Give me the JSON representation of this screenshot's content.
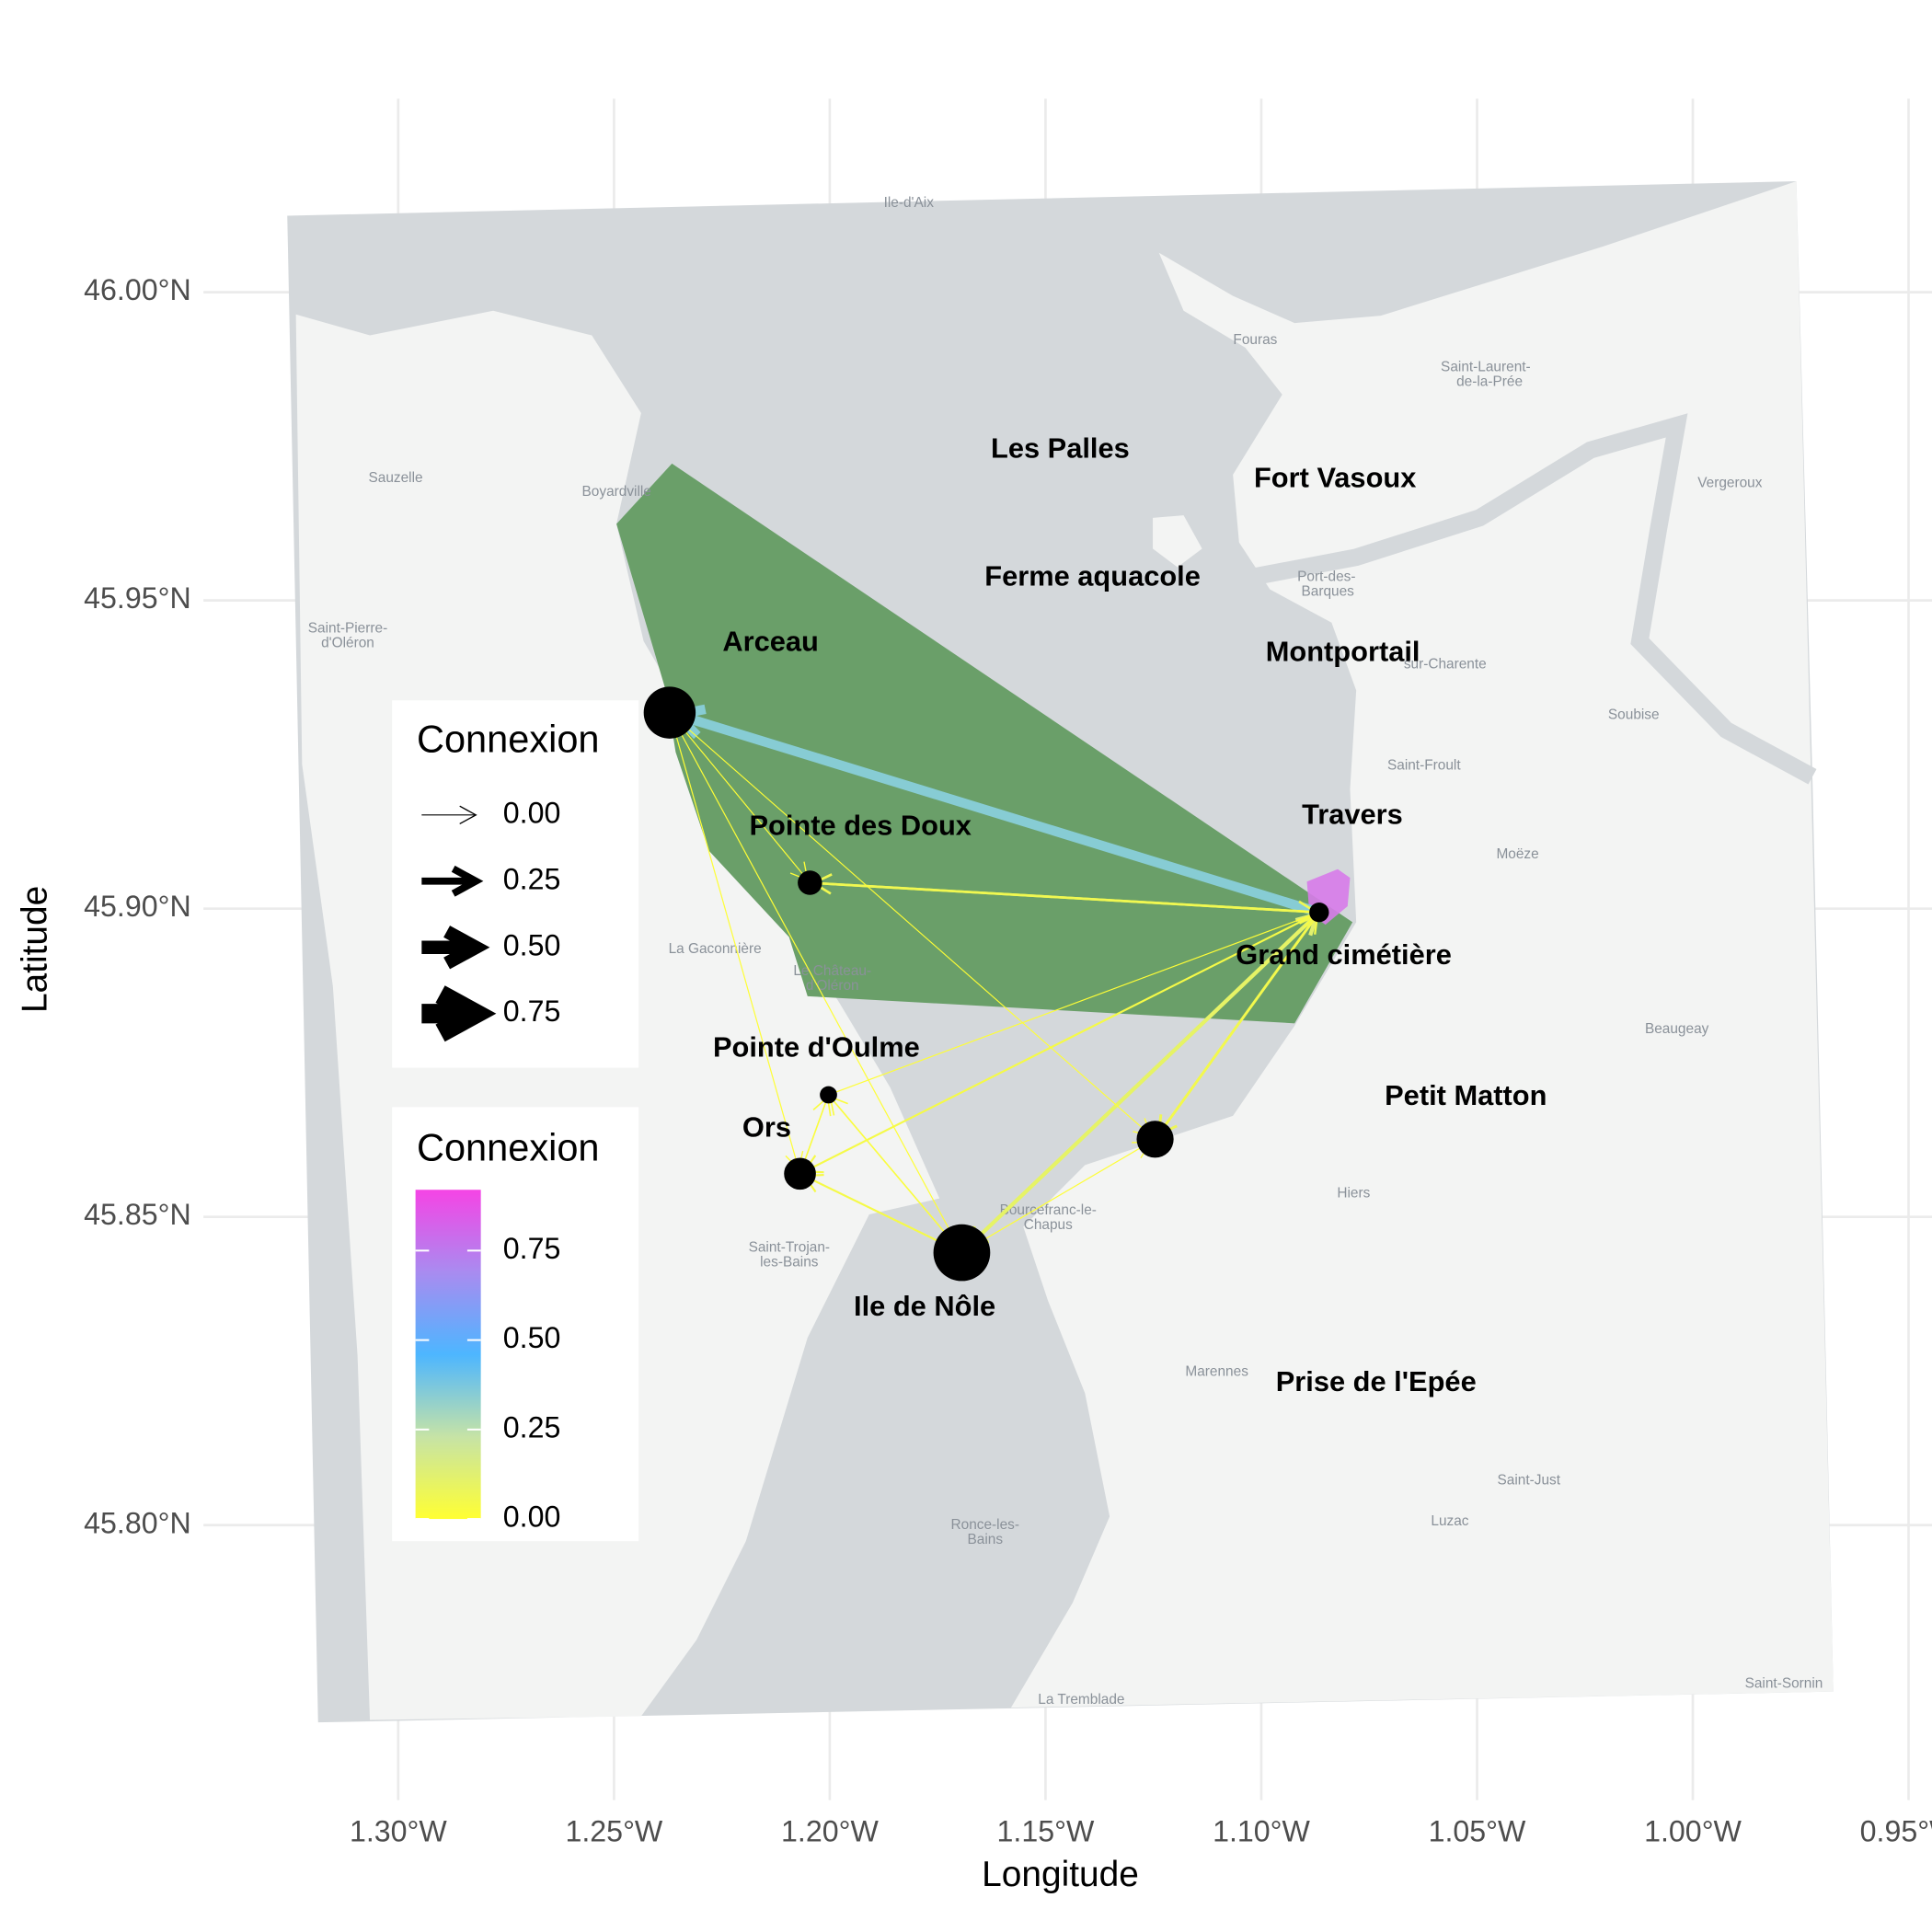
{
  "chart_data": {
    "type": "map",
    "x_label": "Longitude",
    "y_label": "Latitude",
    "xlim": [
      -1.33,
      -0.95
    ],
    "ylim": [
      45.76,
      46.03
    ],
    "xticks": [
      {
        "value": -1.3,
        "label": "1.30°W"
      },
      {
        "value": -1.25,
        "label": "1.25°W"
      },
      {
        "value": -1.2,
        "label": "1.20°W"
      },
      {
        "value": -1.15,
        "label": "1.15°W"
      },
      {
        "value": -1.1,
        "label": "1.10°W"
      },
      {
        "value": -1.05,
        "label": "1.05°W"
      },
      {
        "value": -1.0,
        "label": "1.00°W"
      },
      {
        "value": -0.95,
        "label": "0.95°W"
      }
    ],
    "yticks": [
      {
        "value": 45.8,
        "label": "45.80°N"
      },
      {
        "value": 45.85,
        "label": "45.85°N"
      },
      {
        "value": 45.9,
        "label": "45.90°N"
      },
      {
        "value": 45.95,
        "label": "45.95°N"
      },
      {
        "value": 46.0,
        "label": "46.00°N"
      }
    ],
    "grid": true,
    "sites": [
      {
        "name": "Les Palles",
        "lon": -1.1466,
        "lat": 45.9744
      },
      {
        "name": "Fort Vasoux",
        "lon": -1.0829,
        "lat": 45.9696
      },
      {
        "name": "Ferme aquacole",
        "lon": -1.1391,
        "lat": 45.9536
      },
      {
        "name": "Arceau",
        "lon": -1.2137,
        "lat": 45.943
      },
      {
        "name": "Montportail",
        "lon": -1.0811,
        "lat": 45.9414
      },
      {
        "name": "Travers",
        "lon": -1.0789,
        "lat": 45.915
      },
      {
        "name": "Pointe des Doux",
        "lon": -1.1929,
        "lat": 45.9132
      },
      {
        "name": "Grand cimétière",
        "lon": -1.0809,
        "lat": 45.8922
      },
      {
        "name": "Pointe d'Oulme",
        "lon": -1.2031,
        "lat": 45.8772
      },
      {
        "name": "Petit Matton",
        "lon": -1.0526,
        "lat": 45.8694
      },
      {
        "name": "Ors",
        "lon": -1.2146,
        "lat": 45.8642
      },
      {
        "name": "Ile de Nôle",
        "lon": -1.178,
        "lat": 45.8352
      },
      {
        "name": "Prise de l'Epée",
        "lon": -1.0734,
        "lat": 45.823
      }
    ],
    "nodes": [
      {
        "lon": -1.2371,
        "lat": 45.9318,
        "size": 0.77
      },
      {
        "lon": -1.2046,
        "lat": 45.9042,
        "size": 0.17
      },
      {
        "lon": -1.0866,
        "lat": 45.8994,
        "size": 0.11
      },
      {
        "lon": -1.2003,
        "lat": 45.8698,
        "size": 0.085
      },
      {
        "lon": -1.2069,
        "lat": 45.857,
        "size": 0.29
      },
      {
        "lon": -1.1694,
        "lat": 45.8442,
        "size": 0.92
      },
      {
        "lon": -1.1246,
        "lat": 45.8626,
        "size": 0.39
      }
    ],
    "connections": [
      {
        "from": 2,
        "to": 0,
        "value": 0.35
      },
      {
        "from": 2,
        "to": 1,
        "value": 0.06
      },
      {
        "from": 1,
        "to": 2,
        "value": 0.06
      },
      {
        "from": 5,
        "to": 2,
        "value": 0.12
      },
      {
        "from": 2,
        "to": 5,
        "value": 0.1
      },
      {
        "from": 2,
        "to": 4,
        "value": 0.04
      },
      {
        "from": 2,
        "to": 6,
        "value": 0.07
      },
      {
        "from": 6,
        "to": 2,
        "value": 0.05
      },
      {
        "from": 5,
        "to": 4,
        "value": 0.04
      },
      {
        "from": 5,
        "to": 3,
        "value": 0.02
      },
      {
        "from": 4,
        "to": 3,
        "value": 0.02
      },
      {
        "from": 0,
        "to": 1,
        "value": 0.005
      },
      {
        "from": 0,
        "to": 4,
        "value": 0.005
      },
      {
        "from": 0,
        "to": 5,
        "value": 0.005
      },
      {
        "from": 3,
        "to": 2,
        "value": 0.005
      },
      {
        "from": 5,
        "to": 6,
        "value": 0.005
      },
      {
        "from": 0,
        "to": 6,
        "value": 0.002
      }
    ],
    "basemap_labels": [
      {
        "text": "Ile-d'Aix",
        "lon": -1.1817,
        "lat": 46.0144
      },
      {
        "text": "Fouras",
        "lon": -1.1014,
        "lat": 45.9922
      },
      {
        "text": "Saint-Laurent-",
        "lon": -1.048,
        "lat": 45.9878
      },
      {
        "text": "de-la-Prée",
        "lon": -1.0471,
        "lat": 45.9854
      },
      {
        "text": "Sauzelle",
        "lon": -1.3006,
        "lat": 45.9698
      },
      {
        "text": "Boyardville",
        "lon": -1.2494,
        "lat": 45.9676
      },
      {
        "text": "Vergeroux",
        "lon": -0.9914,
        "lat": 45.969
      },
      {
        "text": "Port-des-",
        "lon": -1.0849,
        "lat": 45.9538
      },
      {
        "text": "Barques",
        "lon": -1.0846,
        "lat": 45.9514
      },
      {
        "text": "Saint-Pierre-",
        "lon": -1.3117,
        "lat": 45.9454
      },
      {
        "text": "d'Oléron",
        "lon": -1.3117,
        "lat": 45.943
      },
      {
        "text": "sur-Charente",
        "lon": -1.0574,
        "lat": 45.9396
      },
      {
        "text": "Soubise",
        "lon": -1.0137,
        "lat": 45.9314
      },
      {
        "text": "Saint-Froult",
        "lon": -1.0623,
        "lat": 45.9232
      },
      {
        "text": "Moëze",
        "lon": -1.0406,
        "lat": 45.9088
      },
      {
        "text": "La Gaconnière",
        "lon": -1.2266,
        "lat": 45.8934
      },
      {
        "text": "Le Château-",
        "lon": -1.1994,
        "lat": 45.8898
      },
      {
        "text": "d'Oléron",
        "lon": -1.1994,
        "lat": 45.8874
      },
      {
        "text": "Beaugeay",
        "lon": -1.0037,
        "lat": 45.8804
      },
      {
        "text": "Hiers",
        "lon": -1.0786,
        "lat": 45.8538
      },
      {
        "text": "Bourcefranc-le-",
        "lon": -1.1494,
        "lat": 45.851
      },
      {
        "text": "Chapus",
        "lon": -1.1494,
        "lat": 45.8486
      },
      {
        "text": "Saint-Trojan-",
        "lon": -1.2094,
        "lat": 45.845
      },
      {
        "text": "les-Bains",
        "lon": -1.2094,
        "lat": 45.8426
      },
      {
        "text": "Marennes",
        "lon": -1.1103,
        "lat": 45.8248
      },
      {
        "text": "Saint-Just",
        "lon": -1.038,
        "lat": 45.8072
      },
      {
        "text": "Luzac",
        "lon": -1.0563,
        "lat": 45.8006
      },
      {
        "text": "Ronce-les-",
        "lon": -1.164,
        "lat": 45.8
      },
      {
        "text": "Bains",
        "lon": -1.164,
        "lat": 45.7976
      },
      {
        "text": "La Tremblade",
        "lon": -1.1417,
        "lat": 45.7716
      },
      {
        "text": "Saint-Sornin",
        "lon": -0.9789,
        "lat": 45.7742
      }
    ],
    "size_legend": {
      "title": "Connexion",
      "values": [
        0,
        0.25,
        0.5,
        0.75
      ],
      "labels": [
        "0.00",
        "0.25",
        "0.50",
        "0.75"
      ]
    },
    "color_legend": {
      "title": "Connexion",
      "lim": [
        0,
        0.92
      ],
      "ticks": [
        {
          "value": 0,
          "label": "0.00"
        },
        {
          "value": 0.25,
          "label": "0.25"
        },
        {
          "value": 0.5,
          "label": "0.50"
        },
        {
          "value": 0.75,
          "label": "0.75"
        }
      ],
      "colors": [
        "#ffff33",
        "#c6e3a6",
        "#4db6ff",
        "#a98bf0",
        "#f544e5"
      ]
    }
  }
}
